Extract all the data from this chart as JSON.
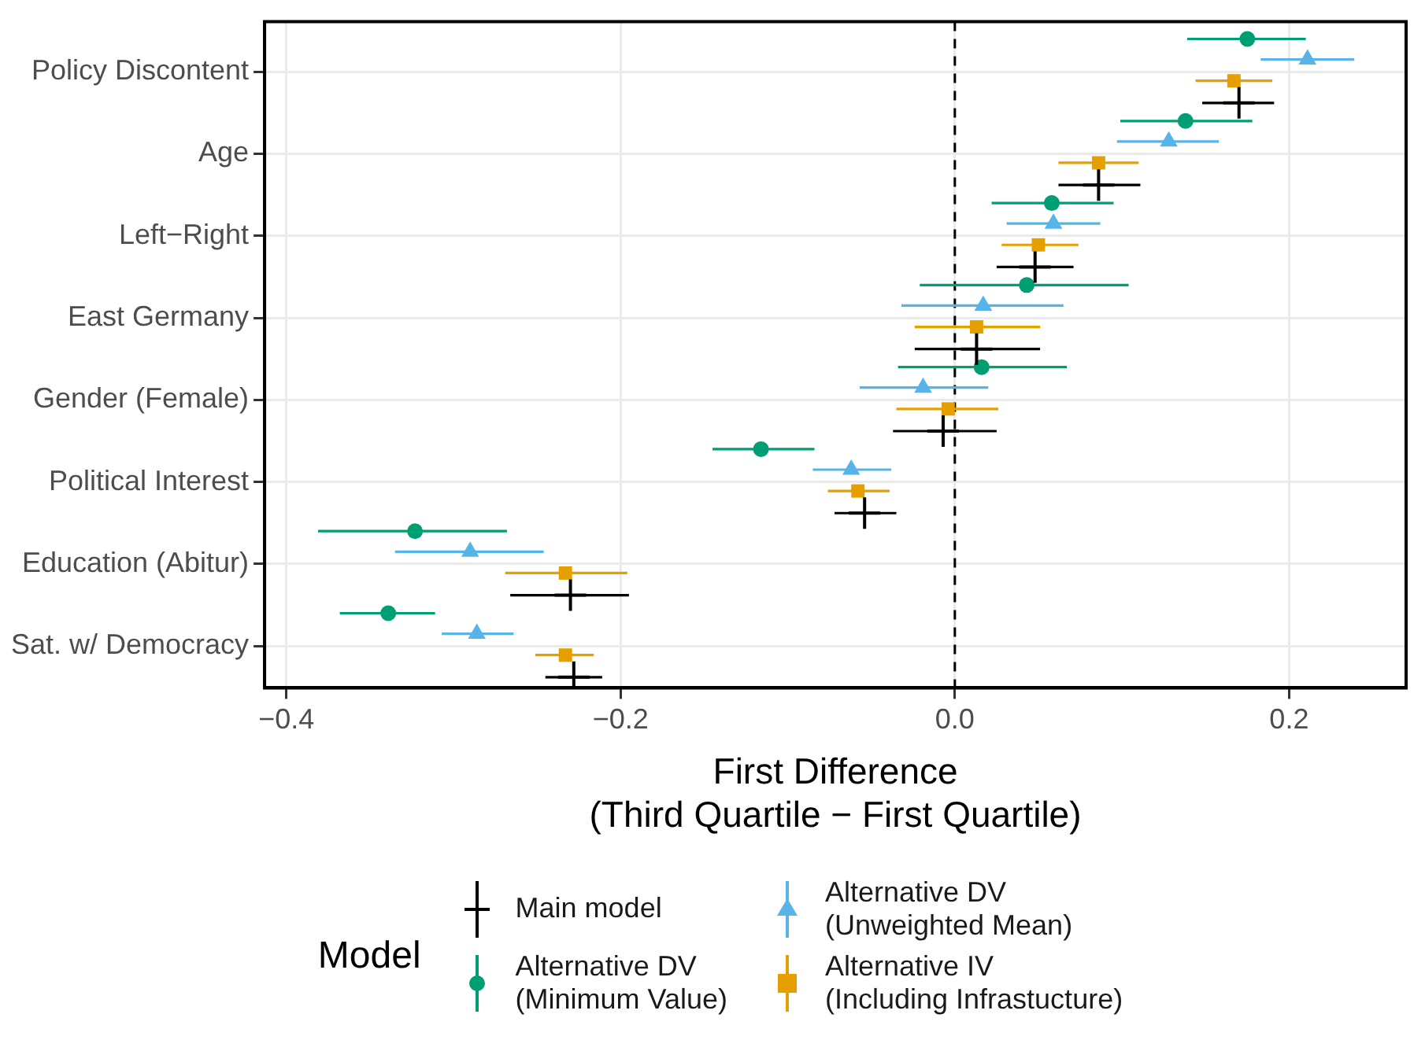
{
  "chart_data": {
    "type": "scatter",
    "orientation": "horizontal",
    "categories": [
      "Policy Discontent",
      "Age",
      "Left−Right",
      "East Germany",
      "Gender (Female)",
      "Political Interest",
      "Education (Abitur)",
      "Sat. w/ Democracy"
    ],
    "series": [
      {
        "name": "Main model",
        "color": "#000000",
        "marker": "cross",
        "values": [
          0.17,
          0.086,
          0.048,
          0.013,
          -0.007,
          -0.054,
          -0.23,
          -0.228
        ],
        "errors": [
          [
            0.148,
            0.191
          ],
          [
            0.062,
            0.111
          ],
          [
            0.025,
            0.071
          ],
          [
            -0.024,
            0.051
          ],
          [
            -0.037,
            0.025
          ],
          [
            -0.072,
            -0.035
          ],
          [
            -0.266,
            -0.195
          ],
          [
            -0.245,
            -0.211
          ]
        ]
      },
      {
        "name": "Alternative DV\n(Minimum Value)",
        "color": "#009e73",
        "marker": "circle",
        "values": [
          0.175,
          0.138,
          0.058,
          0.043,
          0.016,
          -0.116,
          -0.323,
          -0.339
        ],
        "errors": [
          [
            0.139,
            0.21
          ],
          [
            0.099,
            0.178
          ],
          [
            0.022,
            0.095
          ],
          [
            -0.021,
            0.104
          ],
          [
            -0.034,
            0.067
          ],
          [
            -0.145,
            -0.084
          ],
          [
            -0.381,
            -0.268
          ],
          [
            -0.368,
            -0.311
          ]
        ]
      },
      {
        "name": "Alternative DV\n(Unweighted Mean)",
        "color": "#56b4e9",
        "marker": "triangle",
        "values": [
          0.211,
          0.128,
          0.059,
          0.017,
          -0.019,
          -0.062,
          -0.29,
          -0.286
        ],
        "errors": [
          [
            0.183,
            0.239
          ],
          [
            0.097,
            0.158
          ],
          [
            0.031,
            0.087
          ],
          [
            -0.032,
            0.065
          ],
          [
            -0.057,
            0.02
          ],
          [
            -0.085,
            -0.038
          ],
          [
            -0.335,
            -0.246
          ],
          [
            -0.307,
            -0.264
          ]
        ]
      },
      {
        "name": "Alternative IV\n(Including Infrastucture)",
        "color": "#e69f00",
        "marker": "square",
        "values": [
          0.167,
          0.086,
          0.05,
          0.013,
          -0.004,
          -0.058,
          -0.233,
          -0.233
        ],
        "errors": [
          [
            0.144,
            0.19
          ],
          [
            0.062,
            0.11
          ],
          [
            0.028,
            0.074
          ],
          [
            -0.024,
            0.051
          ],
          [
            -0.035,
            0.026
          ],
          [
            -0.076,
            -0.039
          ],
          [
            -0.269,
            -0.196
          ],
          [
            -0.251,
            -0.216
          ]
        ]
      }
    ],
    "xlim": [
      -0.413,
      0.27
    ],
    "xticks": [
      {
        "value": -0.4,
        "label": "−0.4"
      },
      {
        "value": -0.2,
        "label": "−0.2"
      },
      {
        "value": 0,
        "label": "0.0"
      },
      0.2
    ],
    "xlabel": "First Difference\n(Third Quartile − First Quartile)",
    "ref_lines": [
      {
        "axis": "x",
        "value": 0,
        "color": "#000000",
        "line_style": "dashed"
      }
    ],
    "grid": true,
    "legend": "bottom",
    "legend_title": "Model"
  }
}
